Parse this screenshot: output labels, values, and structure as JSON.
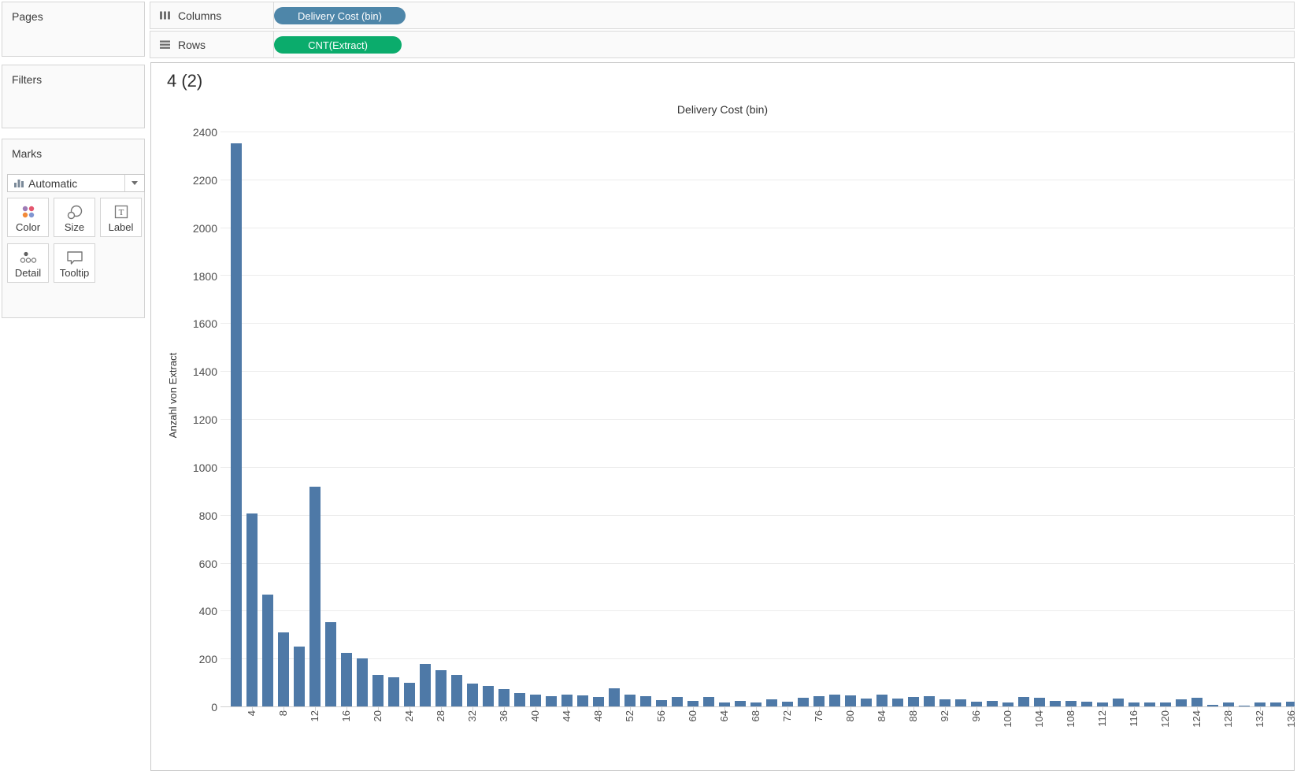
{
  "sidebar": {
    "pages_title": "Pages",
    "filters_title": "Filters",
    "marks_title": "Marks",
    "mark_type_dropdown": {
      "value": "Automatic",
      "icon": "mini-bar-chart-icon",
      "caret_icon": "caret-down-icon"
    },
    "mark_buttons": [
      {
        "label": "Color",
        "icon": "color-dots-icon"
      },
      {
        "label": "Size",
        "icon": "size-circles-icon"
      },
      {
        "label": "Label",
        "icon": "label-t-icon"
      },
      {
        "label": "Detail",
        "icon": "detail-dots-icon"
      },
      {
        "label": "Tooltip",
        "icon": "tooltip-bubble-icon"
      }
    ]
  },
  "shelves": {
    "columns": {
      "label": "Columns",
      "icon": "columns-icon",
      "pill": "Delivery Cost (bin)",
      "pill_color": "#4e86a9",
      "pill_width": 167
    },
    "rows": {
      "label": "Rows",
      "icon": "rows-icon",
      "pill": "CNT(Extract)",
      "pill_color": "#0bac6c",
      "pill_width": 162
    }
  },
  "sheet": {
    "title": "4 (2)"
  },
  "chart_data": {
    "type": "bar",
    "title": "Delivery Cost (bin)",
    "xlabel": "Delivery Cost (bin)",
    "ylabel": "Anzahl von Extract",
    "bar_color": "#4e79a7",
    "grid": "horizontal",
    "ylim": [
      0,
      2443
    ],
    "y_ticks": [
      0,
      200,
      400,
      600,
      800,
      1000,
      1200,
      1400,
      1600,
      1800,
      2000,
      2200,
      2400
    ],
    "x_tick_labels": [
      4,
      8,
      12,
      16,
      20,
      24,
      28,
      32,
      36,
      40,
      44,
      48,
      52,
      56,
      60,
      64,
      68,
      72,
      76,
      80,
      84,
      88,
      92,
      96,
      100,
      104,
      108,
      112,
      116,
      120,
      124,
      128,
      132,
      136
    ],
    "bin_size": 2,
    "categories": [
      2,
      4,
      6,
      8,
      10,
      12,
      14,
      16,
      18,
      20,
      22,
      24,
      26,
      28,
      30,
      32,
      34,
      36,
      38,
      40,
      42,
      44,
      46,
      48,
      50,
      52,
      54,
      56,
      58,
      60,
      62,
      64,
      66,
      68,
      70,
      72,
      74,
      76,
      78,
      80,
      82,
      84,
      86,
      88,
      90,
      92,
      94,
      96,
      98,
      100,
      102,
      104,
      106,
      108,
      110,
      112,
      114,
      116,
      118,
      120,
      122,
      124,
      126,
      128,
      130,
      132,
      134,
      136
    ],
    "values": [
      2350,
      805,
      467,
      308,
      250,
      917,
      353,
      222,
      200,
      132,
      123,
      99,
      177,
      151,
      132,
      96,
      84,
      73,
      57,
      49,
      43,
      49,
      46,
      41,
      74,
      49,
      43,
      27,
      38,
      24,
      38,
      18,
      23,
      16,
      30,
      21,
      36,
      43,
      49,
      46,
      32,
      49,
      34,
      38,
      43,
      29,
      29,
      21,
      23,
      16,
      38,
      36,
      23,
      23,
      21,
      18,
      32,
      16,
      18,
      18,
      29,
      36,
      7,
      16,
      4,
      16,
      18,
      21
    ]
  }
}
